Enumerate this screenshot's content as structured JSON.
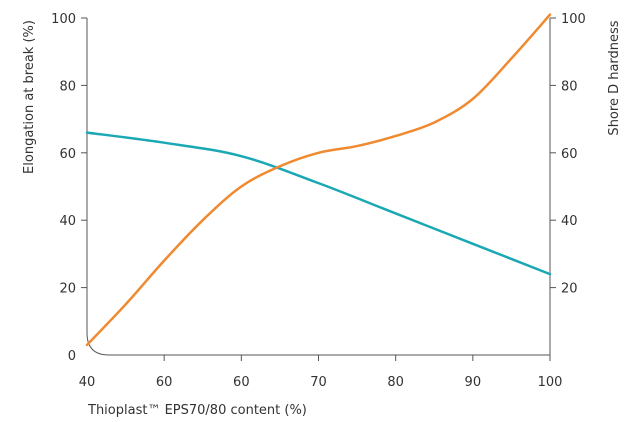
{
  "chart_data": {
    "type": "line",
    "title": "",
    "xlabel": "Thioplast™ EPS70/80 content (%)",
    "ylabel_left": "Elongation at break (%)",
    "ylabel_right": "Shore D hardness",
    "x_tick_labels": [
      "40",
      "60",
      "60",
      "70",
      "80",
      "90",
      "100"
    ],
    "left_ticks": [
      0,
      20,
      40,
      60,
      80,
      100
    ],
    "right_ticks": [
      20,
      40,
      60,
      80,
      100
    ],
    "ylim_left": [
      0,
      100
    ],
    "ylim_right": [
      0,
      100
    ],
    "grid": false,
    "legend": "none",
    "series": [
      {
        "axis": "left",
        "color": "#1aa8b4",
        "points": [
          [
            0,
            66
          ],
          [
            1,
            63
          ],
          [
            2,
            59
          ],
          [
            3,
            51
          ],
          [
            4,
            42
          ],
          [
            5,
            33
          ],
          [
            6,
            24
          ]
        ]
      },
      {
        "axis": "right",
        "color": "#f08a30",
        "points": [
          [
            0,
            3
          ],
          [
            0.5,
            15
          ],
          [
            1,
            28
          ],
          [
            1.5,
            40
          ],
          [
            2,
            50
          ],
          [
            2.5,
            56
          ],
          [
            3,
            60
          ],
          [
            3.5,
            62
          ],
          [
            4,
            65
          ],
          [
            4.5,
            69
          ],
          [
            5,
            76
          ],
          [
            5.5,
            88
          ],
          [
            6,
            101
          ]
        ]
      }
    ]
  }
}
